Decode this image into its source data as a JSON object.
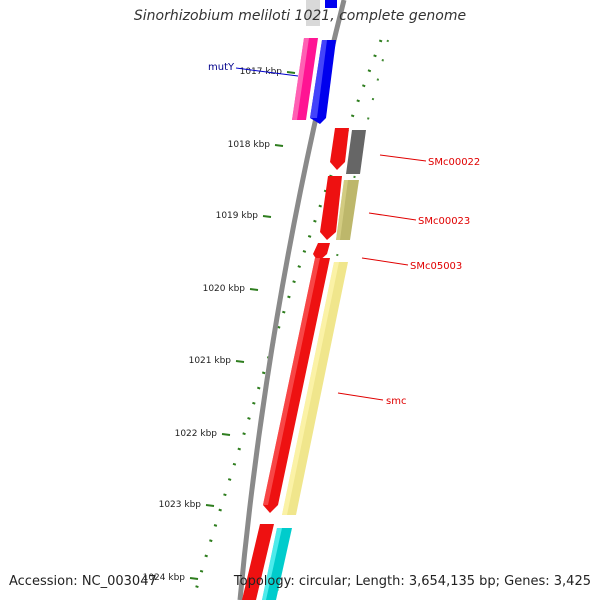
{
  "title": "Sinorhizobium meliloti 1021, complete genome",
  "footer": {
    "accession": "Accession: NC_003047",
    "summary": "Topology: circular; Length: 3,654,135 bp; Genes: 3,425"
  },
  "ticks": [
    {
      "label": "1017 kbp"
    },
    {
      "label": "1018 kbp"
    },
    {
      "label": "1019 kbp"
    },
    {
      "label": "1020 kbp"
    },
    {
      "label": "1021 kbp"
    },
    {
      "label": "1022 kbp"
    },
    {
      "label": "1023 kbp"
    },
    {
      "label": "1024 kbp"
    }
  ],
  "genes": [
    {
      "name": "mutY",
      "color": "#00008b"
    },
    {
      "name": "SMc00022",
      "color": "#e00000"
    },
    {
      "name": "SMc00023",
      "color": "#e00000"
    },
    {
      "name": "SMc05003",
      "color": "#e00000"
    },
    {
      "name": "smc",
      "color": "#e00000"
    }
  ],
  "colors": {
    "backbone": "#8a8a8a",
    "tick": "#2e7d1e",
    "cds_red": "#ee1111",
    "magenta": "#ff1493",
    "blue": "#0000ee",
    "grey": "#666666",
    "olive": "#bdb76b",
    "khaki": "#f0e68c",
    "cyan": "#00cccc"
  }
}
